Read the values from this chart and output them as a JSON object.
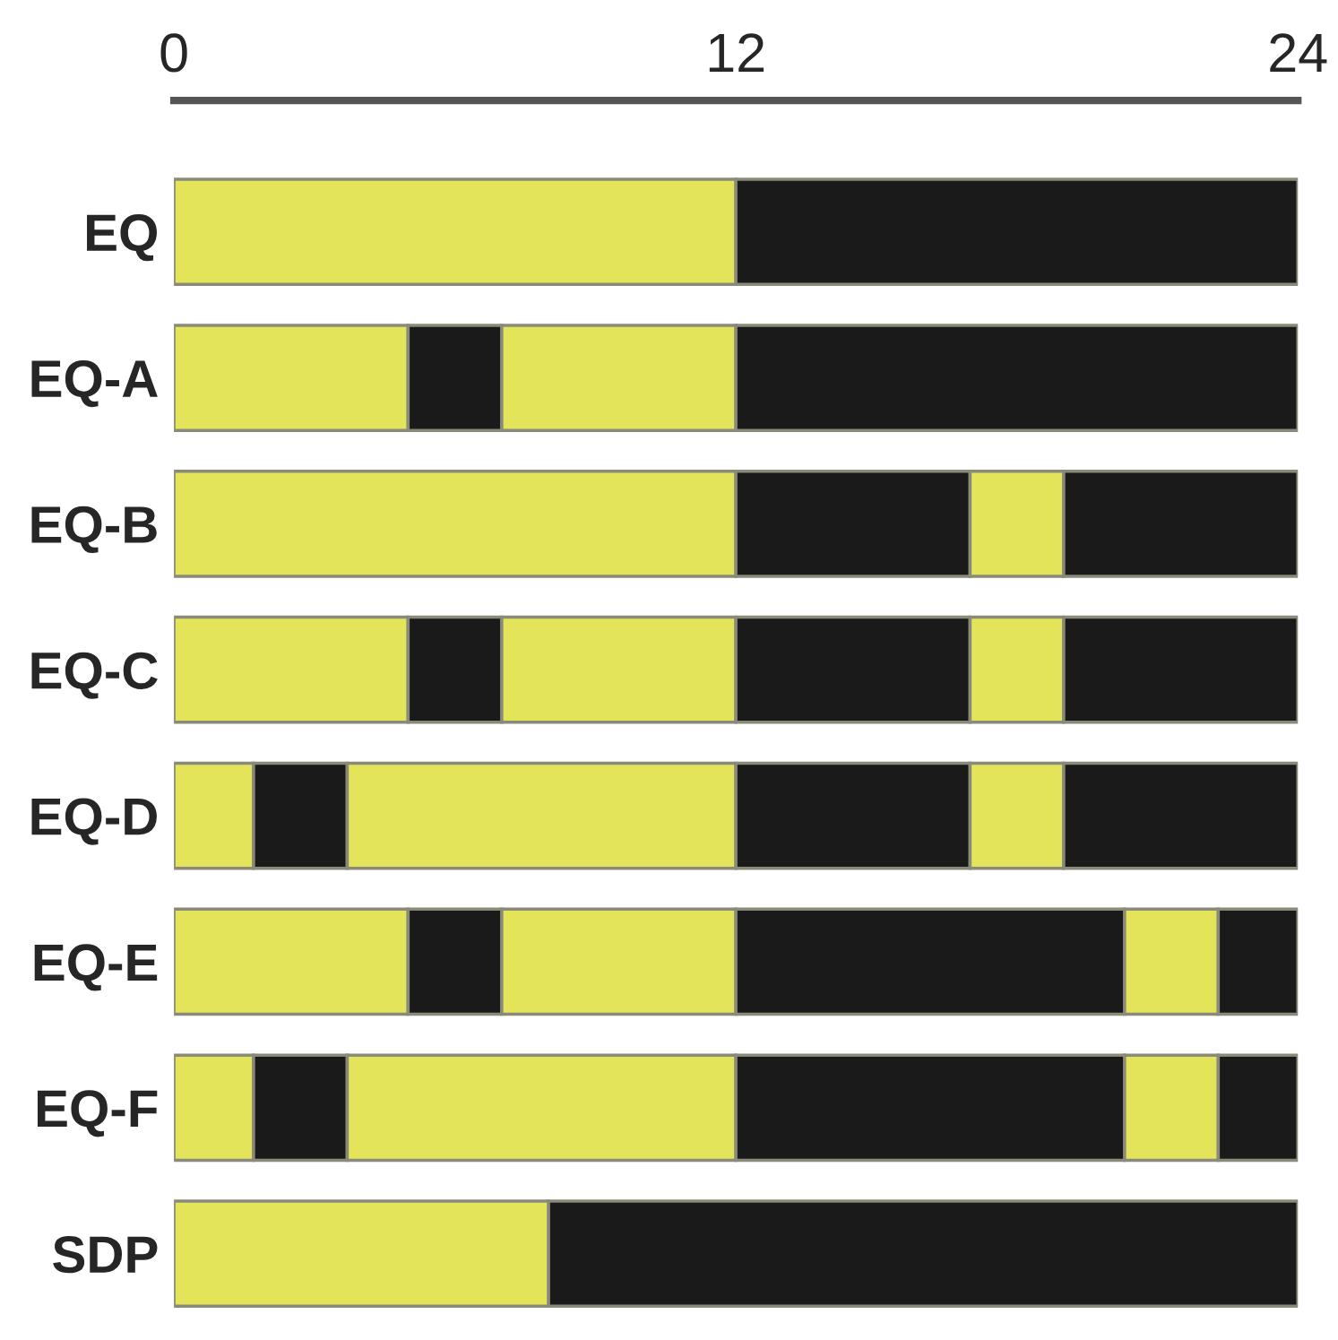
{
  "chart_data": {
    "type": "bar",
    "orientation": "horizontal",
    "stacked": true,
    "categories": [
      "EQ",
      "EQ-A",
      "EQ-B",
      "EQ-C",
      "EQ-D",
      "EQ-E",
      "EQ-F",
      "SDP"
    ],
    "series": [
      {
        "color": "#e3e45a",
        "values": [
          12,
          5,
          12,
          5,
          1.7,
          5,
          1.7,
          8
        ]
      },
      {
        "color": "#1a1a1a",
        "values": [
          null,
          2,
          null,
          2,
          2,
          2,
          2,
          null
        ]
      },
      {
        "color": "#e3e45a",
        "values": [
          null,
          5,
          null,
          5,
          8.3,
          5,
          8.3,
          null
        ]
      },
      {
        "color": "#1a1a1a",
        "values": [
          12,
          12,
          5,
          5,
          5,
          8.3,
          8.3,
          16
        ]
      },
      {
        "color": "#e3e45a",
        "values": [
          null,
          null,
          2,
          2,
          2,
          2,
          2,
          null
        ]
      },
      {
        "color": "#1a1a1a",
        "values": [
          null,
          null,
          5,
          5,
          5,
          1.7,
          1.7,
          null
        ]
      }
    ],
    "xlim": [
      0,
      24
    ],
    "xticks": [
      0,
      12,
      24
    ],
    "grid": false,
    "legend": false
  }
}
